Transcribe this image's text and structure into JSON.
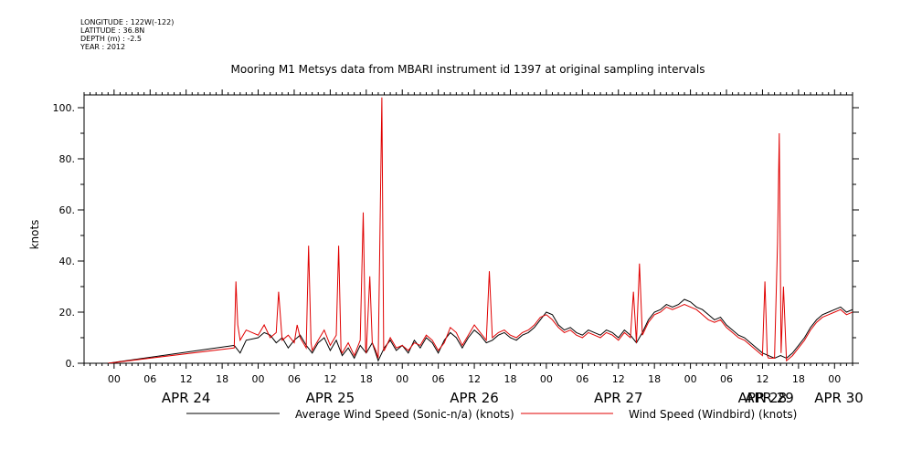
{
  "meta": {
    "longitude": "LONGITUDE : 122W(-122)",
    "latitude": "LATITUDE : 36.8N",
    "depth": "DEPTH (m) : -2.5",
    "year": "YEAR : 2012"
  },
  "chart_data": {
    "type": "line",
    "title": "Mooring M1 Metsys data from MBARI instrument id 1397 at original sampling intervals",
    "ylabel": "knots",
    "xlabel": "",
    "ylim": [
      0,
      105
    ],
    "yticks": [
      0,
      20,
      40,
      60,
      80,
      100
    ],
    "ytick_labels": [
      "0.",
      "20.",
      "40.",
      "60.",
      "80.",
      "100."
    ],
    "xlim_hours": [
      -5,
      123
    ],
    "hour_ticks": [
      {
        "h": 0,
        "label": "00"
      },
      {
        "h": 6,
        "label": "06"
      },
      {
        "h": 12,
        "label": "12"
      },
      {
        "h": 18,
        "label": "18"
      },
      {
        "h": 24,
        "label": "00"
      },
      {
        "h": 30,
        "label": "06"
      },
      {
        "h": 36,
        "label": "12"
      },
      {
        "h": 42,
        "label": "18"
      },
      {
        "h": 48,
        "label": "00"
      },
      {
        "h": 54,
        "label": "06"
      },
      {
        "h": 60,
        "label": "12"
      },
      {
        "h": 66,
        "label": "18"
      },
      {
        "h": 72,
        "label": "00"
      },
      {
        "h": 78,
        "label": "06"
      },
      {
        "h": 84,
        "label": "12"
      },
      {
        "h": 90,
        "label": "18"
      },
      {
        "h": 96,
        "label": "00"
      },
      {
        "h": 102,
        "label": "06"
      },
      {
        "h": 108,
        "label": "12"
      },
      {
        "h": 114,
        "label": "18"
      },
      {
        "h": 120,
        "label": "00"
      }
    ],
    "day_labels": [
      {
        "h": 12,
        "label": "APR 24"
      },
      {
        "h": 36,
        "label": "APR 25"
      },
      {
        "h": 60,
        "label": "APR 26"
      },
      {
        "h": 84,
        "label": "APR 27"
      },
      {
        "h": 108,
        "label": "APR 28"
      },
      {
        "h": 132,
        "label": "APR 29"
      },
      {
        "h": 144,
        "label": "APR 30"
      }
    ],
    "series": [
      {
        "name": "Average Wind Speed (Sonic-n/a) (knots)",
        "color": "#000000",
        "points": [
          [
            -1,
            0
          ],
          [
            20,
            7
          ],
          [
            21,
            4
          ],
          [
            22,
            9
          ],
          [
            24,
            10
          ],
          [
            25,
            12
          ],
          [
            26,
            11
          ],
          [
            27,
            8
          ],
          [
            28,
            10
          ],
          [
            29,
            6
          ],
          [
            30,
            9
          ],
          [
            31,
            11
          ],
          [
            32,
            7
          ],
          [
            33,
            4
          ],
          [
            34,
            8
          ],
          [
            35,
            10
          ],
          [
            36,
            5
          ],
          [
            37,
            9
          ],
          [
            38,
            3
          ],
          [
            39,
            6
          ],
          [
            40,
            2
          ],
          [
            41,
            7
          ],
          [
            42,
            4
          ],
          [
            43,
            8
          ],
          [
            44,
            1
          ],
          [
            45,
            6
          ],
          [
            46,
            9
          ],
          [
            47,
            5
          ],
          [
            48,
            7
          ],
          [
            49,
            4
          ],
          [
            50,
            9
          ],
          [
            51,
            6
          ],
          [
            52,
            10
          ],
          [
            53,
            8
          ],
          [
            54,
            4
          ],
          [
            55,
            9
          ],
          [
            56,
            12
          ],
          [
            57,
            10
          ],
          [
            58,
            6
          ],
          [
            59,
            10
          ],
          [
            60,
            13
          ],
          [
            61,
            11
          ],
          [
            62,
            8
          ],
          [
            63,
            9
          ],
          [
            64,
            11
          ],
          [
            65,
            12
          ],
          [
            66,
            10
          ],
          [
            67,
            9
          ],
          [
            68,
            11
          ],
          [
            69,
            12
          ],
          [
            70,
            14
          ],
          [
            71,
            17
          ],
          [
            72,
            20
          ],
          [
            73,
            19
          ],
          [
            74,
            15
          ],
          [
            75,
            13
          ],
          [
            76,
            14
          ],
          [
            77,
            12
          ],
          [
            78,
            11
          ],
          [
            79,
            13
          ],
          [
            80,
            12
          ],
          [
            81,
            11
          ],
          [
            82,
            13
          ],
          [
            83,
            12
          ],
          [
            84,
            10
          ],
          [
            85,
            13
          ],
          [
            86,
            11
          ],
          [
            87,
            8
          ],
          [
            88,
            12
          ],
          [
            89,
            17
          ],
          [
            90,
            20
          ],
          [
            91,
            21
          ],
          [
            92,
            23
          ],
          [
            93,
            22
          ],
          [
            94,
            23
          ],
          [
            95,
            25
          ],
          [
            96,
            24
          ],
          [
            97,
            22
          ],
          [
            98,
            21
          ],
          [
            99,
            19
          ],
          [
            100,
            17
          ],
          [
            101,
            18
          ],
          [
            102,
            15
          ],
          [
            103,
            13
          ],
          [
            104,
            11
          ],
          [
            105,
            10
          ],
          [
            106,
            8
          ],
          [
            107,
            6
          ],
          [
            108,
            4
          ],
          [
            109,
            3
          ],
          [
            110,
            2
          ],
          [
            111,
            3
          ],
          [
            112,
            2
          ],
          [
            113,
            4
          ],
          [
            114,
            7
          ],
          [
            115,
            10
          ],
          [
            116,
            14
          ],
          [
            117,
            17
          ],
          [
            118,
            19
          ],
          [
            119,
            20
          ],
          [
            120,
            21
          ],
          [
            121,
            22
          ],
          [
            122,
            20
          ],
          [
            123,
            21
          ],
          [
            124,
            20
          ],
          [
            125,
            21
          ],
          [
            126,
            22
          ],
          [
            127,
            20
          ],
          [
            128,
            19
          ],
          [
            129,
            17
          ],
          [
            130,
            14
          ],
          [
            131,
            13
          ],
          [
            132,
            12
          ],
          [
            133,
            11
          ],
          [
            134,
            9
          ],
          [
            135,
            7
          ],
          [
            136,
            5
          ],
          [
            137,
            4
          ],
          [
            138,
            4
          ],
          [
            139,
            3
          ],
          [
            140,
            5
          ],
          [
            141,
            6
          ],
          [
            142,
            8
          ],
          [
            143,
            14
          ],
          [
            144,
            17
          ],
          [
            145,
            18
          ],
          [
            146,
            19
          ],
          [
            147,
            21
          ],
          [
            148,
            20
          ],
          [
            149,
            19
          ],
          [
            150,
            16
          ],
          [
            151,
            17
          ],
          [
            152,
            18
          ]
        ]
      },
      {
        "name": "Wind Speed (Windbird) (knots)",
        "color": "#e00000",
        "points": [
          [
            -1,
            0
          ],
          [
            20,
            6
          ],
          [
            20.3,
            32
          ],
          [
            20.6,
            15
          ],
          [
            21,
            9
          ],
          [
            22,
            13
          ],
          [
            24,
            11
          ],
          [
            25,
            15
          ],
          [
            26,
            10
          ],
          [
            27,
            12
          ],
          [
            27.4,
            28
          ],
          [
            28,
            9
          ],
          [
            29,
            11
          ],
          [
            30,
            8
          ],
          [
            30.5,
            15
          ],
          [
            31,
            10
          ],
          [
            32,
            6
          ],
          [
            32.4,
            46
          ],
          [
            32.8,
            8
          ],
          [
            33,
            5
          ],
          [
            34,
            9
          ],
          [
            35,
            13
          ],
          [
            36,
            7
          ],
          [
            37,
            11
          ],
          [
            37.4,
            46
          ],
          [
            37.8,
            5
          ],
          [
            38,
            4
          ],
          [
            39,
            8
          ],
          [
            40,
            3
          ],
          [
            41,
            9
          ],
          [
            41.5,
            59
          ],
          [
            41.9,
            6
          ],
          [
            42,
            4
          ],
          [
            42.6,
            34
          ],
          [
            43,
            8
          ],
          [
            43.6,
            5
          ],
          [
            44,
            2
          ],
          [
            44.3,
            53
          ],
          [
            44.6,
            104
          ],
          [
            44.9,
            5
          ],
          [
            45,
            5
          ],
          [
            46,
            10
          ],
          [
            47,
            6
          ],
          [
            48,
            7
          ],
          [
            49,
            5
          ],
          [
            50,
            8
          ],
          [
            51,
            7
          ],
          [
            52,
            11
          ],
          [
            53,
            9
          ],
          [
            54,
            5
          ],
          [
            55,
            8
          ],
          [
            56,
            14
          ],
          [
            57,
            12
          ],
          [
            58,
            7
          ],
          [
            59,
            11
          ],
          [
            60,
            15
          ],
          [
            61,
            12
          ],
          [
            62,
            9
          ],
          [
            62.5,
            36
          ],
          [
            63,
            10
          ],
          [
            64,
            12
          ],
          [
            65,
            13
          ],
          [
            66,
            11
          ],
          [
            67,
            10
          ],
          [
            68,
            12
          ],
          [
            69,
            13
          ],
          [
            70,
            15
          ],
          [
            71,
            18
          ],
          [
            72,
            19
          ],
          [
            73,
            17
          ],
          [
            74,
            14
          ],
          [
            75,
            12
          ],
          [
            76,
            13
          ],
          [
            77,
            11
          ],
          [
            78,
            10
          ],
          [
            79,
            12
          ],
          [
            80,
            11
          ],
          [
            81,
            10
          ],
          [
            82,
            12
          ],
          [
            83,
            11
          ],
          [
            84,
            9
          ],
          [
            85,
            12
          ],
          [
            86,
            10
          ],
          [
            86.5,
            28
          ],
          [
            87,
            8
          ],
          [
            87.5,
            39
          ],
          [
            88,
            11
          ],
          [
            89,
            16
          ],
          [
            90,
            19
          ],
          [
            91,
            20
          ],
          [
            92,
            22
          ],
          [
            93,
            21
          ],
          [
            94,
            22
          ],
          [
            95,
            23
          ],
          [
            96,
            22
          ],
          [
            97,
            21
          ],
          [
            98,
            19
          ],
          [
            99,
            17
          ],
          [
            100,
            16
          ],
          [
            101,
            17
          ],
          [
            102,
            14
          ],
          [
            103,
            12
          ],
          [
            104,
            10
          ],
          [
            105,
            9
          ],
          [
            106,
            7
          ],
          [
            107,
            5
          ],
          [
            108,
            3
          ],
          [
            108.4,
            32
          ],
          [
            108.8,
            3
          ],
          [
            109,
            2
          ],
          [
            110,
            2
          ],
          [
            110.5,
            47
          ],
          [
            110.8,
            90
          ],
          [
            111.1,
            4
          ],
          [
            111.5,
            30
          ],
          [
            112,
            1
          ],
          [
            113,
            3
          ],
          [
            114,
            6
          ],
          [
            115,
            9
          ],
          [
            116,
            13
          ],
          [
            117,
            16
          ],
          [
            118,
            18
          ],
          [
            119,
            19
          ],
          [
            120,
            20
          ],
          [
            121,
            21
          ],
          [
            122,
            19
          ],
          [
            123,
            20
          ],
          [
            124,
            19
          ],
          [
            125,
            20
          ],
          [
            126,
            21
          ],
          [
            127,
            19
          ],
          [
            128,
            18
          ],
          [
            129,
            16
          ],
          [
            130,
            13
          ],
          [
            131,
            12
          ],
          [
            132,
            11
          ],
          [
            133,
            10
          ],
          [
            134,
            8
          ],
          [
            135,
            6
          ],
          [
            136,
            4
          ],
          [
            137,
            3
          ],
          [
            138,
            3
          ],
          [
            139,
            2
          ],
          [
            140,
            4
          ],
          [
            141,
            5
          ],
          [
            142,
            7
          ],
          [
            143,
            13
          ],
          [
            144,
            16
          ],
          [
            145,
            17
          ],
          [
            146,
            18
          ],
          [
            147,
            20
          ],
          [
            148,
            19
          ],
          [
            149,
            18
          ],
          [
            150,
            15
          ],
          [
            151,
            16
          ],
          [
            152,
            17
          ]
        ]
      }
    ],
    "legend": {
      "placement": "bottom"
    }
  }
}
